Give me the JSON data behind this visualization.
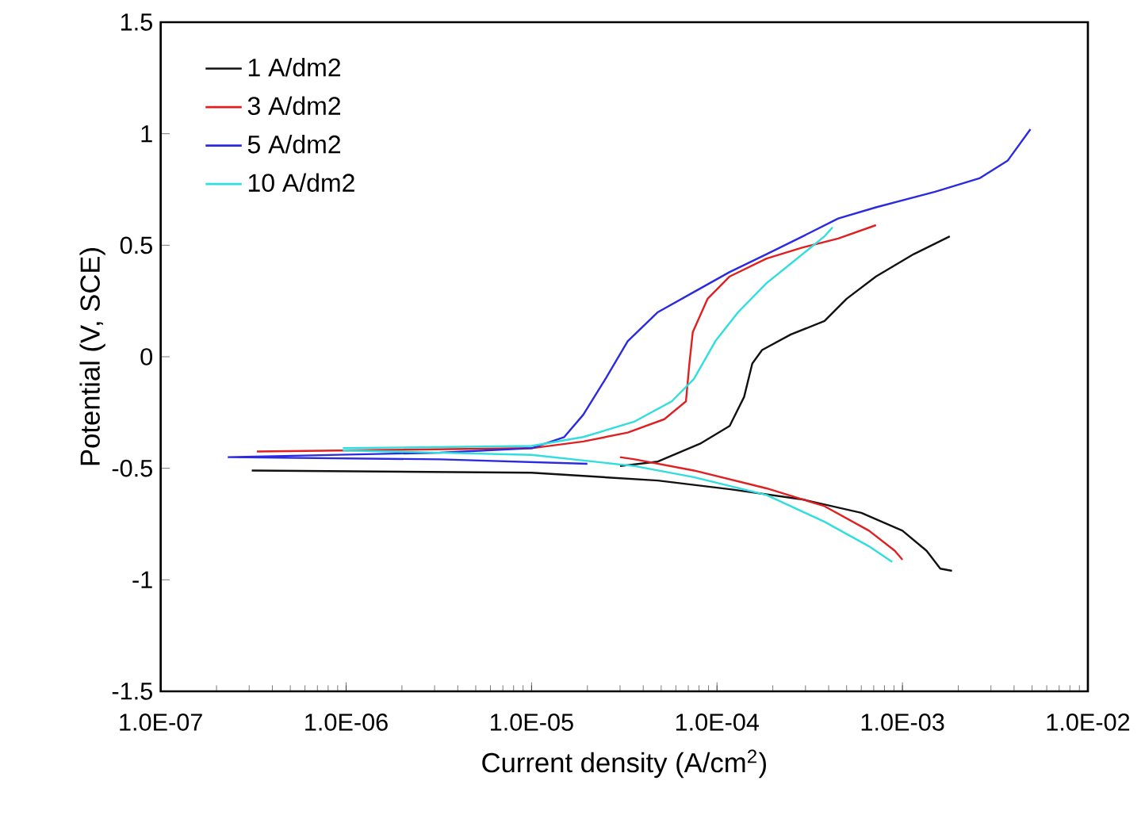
{
  "chart_data": {
    "type": "line",
    "xlabel": "Current density (A/cm$^{2}$)",
    "ylabel": "Potential (V, SCE)",
    "log": "x",
    "legend": "top left",
    "grid": false,
    "marker": "none",
    "line_style": "solid",
    "xlim": [
      1e-07,
      0.01
    ],
    "ylim": [
      -1.5,
      1.5
    ],
    "xticks": [
      {
        "value": 1e-07,
        "label": "1.0E-07"
      },
      {
        "value": 1e-06,
        "label": "1.0E-06"
      },
      {
        "value": 1e-05,
        "label": "1.0E-05"
      },
      {
        "value": 0.0001,
        "label": "1.0E-04"
      },
      {
        "value": 0.001,
        "label": "1.0E-03"
      },
      {
        "value": 0.01,
        "label": "1.0E-02"
      }
    ],
    "yticks": [
      -1.5,
      -1,
      -0.5,
      0,
      0.5,
      1,
      1.5
    ],
    "series": [
      {
        "name": "1 A/dm2",
        "color": "#111111",
        "x": [
          3.1e-07,
          1e-05,
          4.8e-05,
          0.00012,
          0.00029,
          0.0006,
          0.001,
          0.00135,
          0.0016,
          0.00185,
          null,
          3e-05,
          4.8e-05,
          8.1e-05,
          0.000117,
          0.00014,
          0.000155,
          0.000175,
          0.00025,
          0.00038,
          0.0005,
          0.00072,
          0.00115,
          0.0018
        ],
        "values": [
          -0.51,
          -0.52,
          -0.555,
          -0.595,
          -0.64,
          -0.7,
          -0.78,
          -0.87,
          -0.95,
          -0.96,
          null,
          -0.49,
          -0.47,
          -0.39,
          -0.31,
          -0.18,
          -0.03,
          0.03,
          0.1,
          0.16,
          0.26,
          0.36,
          0.46,
          0.54
        ]
      },
      {
        "name": "3 A/dm2",
        "color": "#e02020",
        "x": [
          3.3e-07,
          1e-05,
          1.9e-05,
          3.3e-05,
          5.2e-05,
          6.8e-05,
          7.1e-05,
          7.4e-05,
          8.9e-05,
          0.000117,
          0.000185,
          0.00029,
          0.00045,
          0.00072,
          null,
          3e-05,
          3.6e-05,
          7.5e-05,
          0.000185,
          0.00038,
          0.00066,
          0.00091,
          0.001
        ],
        "values": [
          -0.425,
          -0.41,
          -0.38,
          -0.34,
          -0.28,
          -0.2,
          -0.03,
          0.11,
          0.26,
          0.36,
          0.44,
          0.49,
          0.53,
          0.59,
          null,
          -0.45,
          -0.46,
          -0.51,
          -0.59,
          -0.67,
          -0.78,
          -0.87,
          -0.91
        ]
      },
      {
        "name": "5 A/dm2",
        "color": "#2a2ae0",
        "x": [
          2.3e-07,
          3.2e-06,
          1e-05,
          1.5e-05,
          1.9e-05,
          2.5e-05,
          3.3e-05,
          4.8e-05,
          7.5e-05,
          0.000117,
          0.000185,
          0.00029,
          0.00045,
          0.00072,
          0.0015,
          0.0026,
          0.0037,
          0.0049,
          null,
          2.3e-07,
          3.2e-06,
          2e-05
        ],
        "values": [
          -0.45,
          -0.43,
          -0.41,
          -0.36,
          -0.26,
          -0.1,
          0.07,
          0.2,
          0.29,
          0.38,
          0.46,
          0.54,
          0.62,
          0.67,
          0.74,
          0.8,
          0.88,
          1.02,
          null,
          -0.45,
          -0.46,
          -0.48
        ]
      },
      {
        "name": "10 A/dm2",
        "color": "#30dede",
        "x": [
          9.6e-07,
          1e-05,
          1.9e-05,
          3.6e-05,
          5.7e-05,
          7.5e-05,
          9.8e-05,
          0.00013,
          0.000185,
          0.00027,
          0.00038,
          0.00042,
          null,
          9.6e-07,
          1e-05,
          3.6e-05,
          7.5e-05,
          0.000185,
          0.00038,
          0.00066,
          0.00088
        ],
        "values": [
          -0.41,
          -0.4,
          -0.36,
          -0.29,
          -0.2,
          -0.1,
          0.07,
          0.2,
          0.33,
          0.44,
          0.54,
          0.58,
          null,
          -0.42,
          -0.44,
          -0.49,
          -0.54,
          -0.62,
          -0.74,
          -0.85,
          -0.92
        ]
      }
    ]
  }
}
